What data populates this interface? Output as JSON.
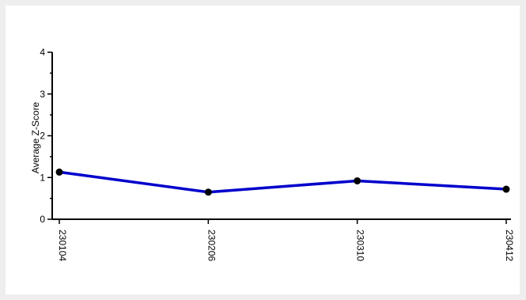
{
  "chart_data": {
    "type": "line",
    "title": "",
    "xlabel": "",
    "ylabel": "Average Z-Score",
    "categories": [
      "230104",
      "230206",
      "230310",
      "230412"
    ],
    "series": [
      {
        "values": [
          1.13,
          0.65,
          0.92,
          0.72
        ],
        "color": "#0000cc",
        "marker_color": "#000000"
      }
    ],
    "ylim": [
      0,
      4
    ],
    "yticks": [
      "0",
      "1",
      "2",
      "3",
      "4"
    ],
    "grid": false,
    "legend": "none",
    "background": "#ffffff",
    "page_background": "#eeeeee"
  }
}
